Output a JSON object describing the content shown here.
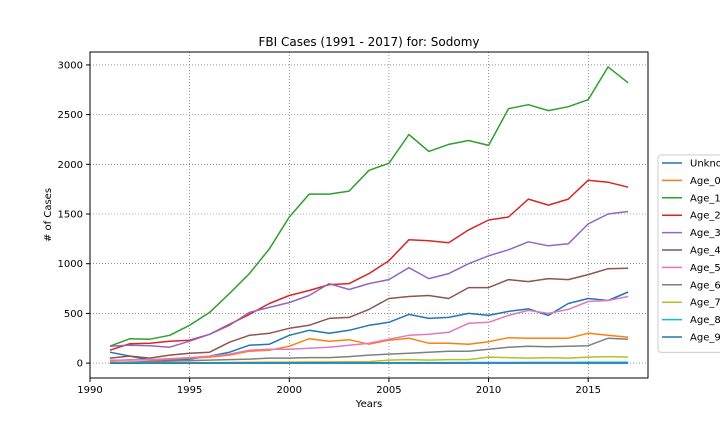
{
  "chart_data": {
    "type": "line",
    "title": "FBI Cases (1991 - 2017) for: Sodomy",
    "xlabel": "Years",
    "ylabel": "# of Cases",
    "xlim": [
      1990,
      2018
    ],
    "ylim": [
      -150,
      3130
    ],
    "xticks": [
      1990,
      1995,
      2000,
      2005,
      2010,
      2015
    ],
    "yticks": [
      0,
      500,
      1000,
      1500,
      2000,
      2500,
      3000
    ],
    "grid": true,
    "grid_style": "dotted",
    "legend_position": "right, partially outside plot",
    "x": [
      1991,
      1992,
      1993,
      1994,
      1995,
      1996,
      1997,
      1998,
      1999,
      2000,
      2001,
      2002,
      2003,
      2004,
      2005,
      2006,
      2007,
      2008,
      2009,
      2010,
      2011,
      2012,
      2013,
      2014,
      2015,
      2016,
      2017
    ],
    "series": [
      {
        "name": "Unkno",
        "color": "#1f77b4",
        "values": [
          110,
          70,
          30,
          30,
          40,
          70,
          110,
          180,
          190,
          280,
          330,
          300,
          330,
          380,
          410,
          490,
          450,
          460,
          500,
          480,
          520,
          545,
          480,
          600,
          650,
          630,
          715
        ]
      },
      {
        "name": "Age_0",
        "color": "#ff7f0e",
        "values": [
          20,
          35,
          30,
          40,
          50,
          60,
          80,
          120,
          130,
          170,
          245,
          220,
          235,
          190,
          230,
          250,
          200,
          200,
          190,
          215,
          255,
          250,
          250,
          250,
          300,
          280,
          260
        ]
      },
      {
        "name": "Age_1",
        "color": "#2ca02c",
        "values": [
          170,
          245,
          240,
          280,
          380,
          510,
          700,
          900,
          1150,
          1470,
          1700,
          1700,
          1730,
          1940,
          2010,
          2300,
          2130,
          2200,
          2240,
          2190,
          2560,
          2600,
          2540,
          2580,
          2650,
          2980,
          2820
        ]
      },
      {
        "name": "Age_2",
        "color": "#d62728",
        "values": [
          130,
          195,
          200,
          220,
          230,
          290,
          390,
          490,
          600,
          680,
          730,
          790,
          800,
          900,
          1030,
          1240,
          1230,
          1210,
          1340,
          1440,
          1470,
          1650,
          1590,
          1650,
          1840,
          1820,
          1770
        ]
      },
      {
        "name": "Age_3",
        "color": "#9467bd",
        "values": [
          170,
          180,
          175,
          160,
          220,
          290,
          380,
          510,
          560,
          610,
          680,
          800,
          740,
          800,
          840,
          960,
          850,
          900,
          1000,
          1080,
          1140,
          1220,
          1180,
          1200,
          1400,
          1500,
          1525
        ]
      },
      {
        "name": "Age_4",
        "color": "#8c564b",
        "values": [
          50,
          70,
          50,
          80,
          100,
          110,
          210,
          280,
          300,
          350,
          380,
          450,
          460,
          540,
          650,
          670,
          680,
          650,
          760,
          760,
          840,
          820,
          850,
          840,
          890,
          950,
          955
        ]
      },
      {
        "name": "Age_5",
        "color": "#e377c2",
        "values": [
          30,
          30,
          35,
          45,
          55,
          70,
          90,
          130,
          140,
          140,
          150,
          160,
          180,
          200,
          240,
          280,
          290,
          310,
          400,
          410,
          480,
          530,
          500,
          540,
          620,
          630,
          670
        ]
      },
      {
        "name": "Age_6",
        "color": "#7f7f7f",
        "values": [
          5,
          10,
          15,
          20,
          25,
          30,
          35,
          40,
          50,
          50,
          55,
          55,
          65,
          80,
          90,
          100,
          110,
          120,
          120,
          140,
          160,
          170,
          165,
          170,
          175,
          250,
          240
        ]
      },
      {
        "name": "Age_7",
        "color": "#bcbd22",
        "values": [
          2,
          3,
          3,
          4,
          5,
          5,
          6,
          8,
          10,
          10,
          12,
          12,
          14,
          15,
          30,
          35,
          30,
          35,
          35,
          60,
          55,
          50,
          55,
          50,
          60,
          65,
          60
        ]
      },
      {
        "name": "Age_8",
        "color": "#17becf",
        "values": [
          0,
          0,
          1,
          1,
          1,
          1,
          2,
          2,
          2,
          2,
          3,
          3,
          3,
          4,
          4,
          5,
          5,
          5,
          6,
          6,
          6,
          7,
          7,
          7,
          8,
          8,
          8
        ]
      },
      {
        "name": "Age_9",
        "color": "#1f77b4",
        "values": [
          0,
          0,
          0,
          0,
          0,
          0,
          0,
          0,
          0,
          0,
          0,
          0,
          0,
          0,
          0,
          0,
          0,
          0,
          0,
          0,
          0,
          0,
          0,
          0,
          0,
          0,
          0
        ]
      }
    ]
  }
}
